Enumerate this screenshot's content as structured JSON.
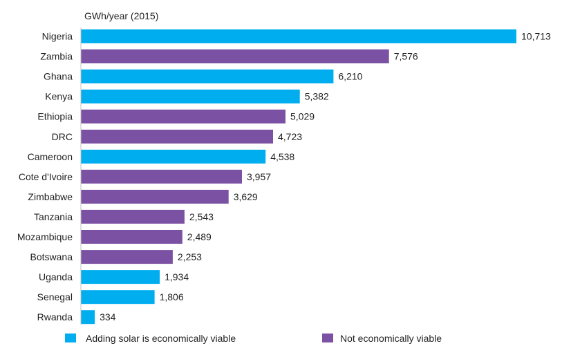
{
  "chart_data": {
    "type": "bar",
    "orientation": "horizontal",
    "unit_label": "GWh/year (2015)",
    "categories": [
      "Nigeria",
      "Zambia",
      "Ghana",
      "Kenya",
      "Ethiopia",
      "DRC",
      "Cameroon",
      "Cote d'Ivoire",
      "Zimbabwe",
      "Tanzania",
      "Mozambique",
      "Botswana",
      "Uganda",
      "Senegal",
      "Rwanda"
    ],
    "values": [
      10713,
      7576,
      6210,
      5382,
      5029,
      4723,
      4538,
      3957,
      3629,
      2543,
      2489,
      2253,
      1934,
      1806,
      334
    ],
    "value_labels": [
      "10,713",
      "7,576",
      "6,210",
      "5,382",
      "5,029",
      "4,723",
      "4,538",
      "3,957",
      "3,629",
      "2,543",
      "2,489",
      "2,253",
      "1,934",
      "1,806",
      "334"
    ],
    "groups": [
      "viable",
      "not_viable",
      "viable",
      "viable",
      "not_viable",
      "not_viable",
      "viable",
      "not_viable",
      "not_viable",
      "not_viable",
      "not_viable",
      "not_viable",
      "viable",
      "viable",
      "viable"
    ],
    "legend": [
      {
        "key": "viable",
        "label": "Adding solar is economically viable",
        "color": "#00AEEF"
      },
      {
        "key": "not_viable",
        "label": "Not economically viable",
        "color": "#7B52A3"
      }
    ],
    "legend_position": "bottom",
    "xlim": [
      0,
      10713
    ],
    "grid": false,
    "axis_line_color": "#BFBFBF"
  }
}
